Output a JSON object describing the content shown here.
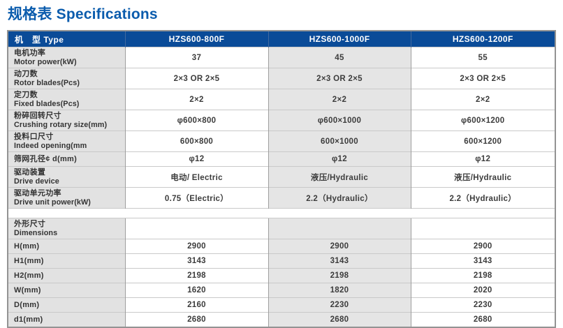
{
  "title": "规格表 Specifications",
  "colors": {
    "title_blue": "#0b5cad",
    "header_blue": "#0a4b98",
    "label_column_gray": "#e2e2e2",
    "shaded_column_gray": "#e5e5e5",
    "text_dark": "#3c3c3c"
  },
  "header": {
    "type_label": "机　型 Type",
    "models": [
      "HZS600-800F",
      "HZS600-1000F",
      "HZS600-1200F"
    ]
  },
  "specs": [
    {
      "zh": "电机功率",
      "en": "Motor power(kW)",
      "values": [
        "37",
        "45",
        "55"
      ]
    },
    {
      "zh": "动刀数",
      "en": "Rotor blades(Pcs)",
      "values": [
        "2×3 OR 2×5",
        "2×3 OR 2×5",
        "2×3 OR 2×5"
      ]
    },
    {
      "zh": "定刀数",
      "en": "Fixed blades(Pcs)",
      "values": [
        "2×2",
        "2×2",
        "2×2"
      ]
    },
    {
      "zh": "粉碎回转尺寸",
      "en": "Crushing rotary size(mm)",
      "values": [
        "φ600×800",
        "φ600×1000",
        "φ600×1200"
      ]
    },
    {
      "zh": "投料口尺寸",
      "en": "Indeed opening(mm",
      "values": [
        "600×800",
        "600×1000",
        "600×1200"
      ]
    },
    {
      "zh": "筛网孔径¢ d(mm)",
      "en": "",
      "values": [
        "φ12",
        "φ12",
        "φ12"
      ]
    },
    {
      "zh": "驱动装置",
      "en": "Drive device",
      "values": [
        "电动/ Electric",
        "液压/Hydraulic",
        "液压/Hydraulic"
      ]
    },
    {
      "zh": "驱动单元功率",
      "en": "Drive unit power(kW)",
      "values": [
        "0.75（Electric）",
        "2.2（Hydraulic）",
        "2.2（Hydraulic）"
      ]
    }
  ],
  "dimensions": {
    "zh": "外形尺寸",
    "en": "Dimensions",
    "rows": [
      {
        "label": "H(mm)",
        "values": [
          "2900",
          "2900",
          "2900"
        ]
      },
      {
        "label": "H1(mm)",
        "values": [
          "3143",
          "3143",
          "3143"
        ]
      },
      {
        "label": "H2(mm)",
        "values": [
          "2198",
          "2198",
          "2198"
        ]
      },
      {
        "label": "W(mm)",
        "values": [
          "1620",
          "1820",
          "2020"
        ]
      },
      {
        "label": "D(mm)",
        "values": [
          "2160",
          "2230",
          "2230"
        ]
      },
      {
        "label": "d1(mm)",
        "values": [
          "2680",
          "2680",
          "2680"
        ]
      }
    ]
  }
}
